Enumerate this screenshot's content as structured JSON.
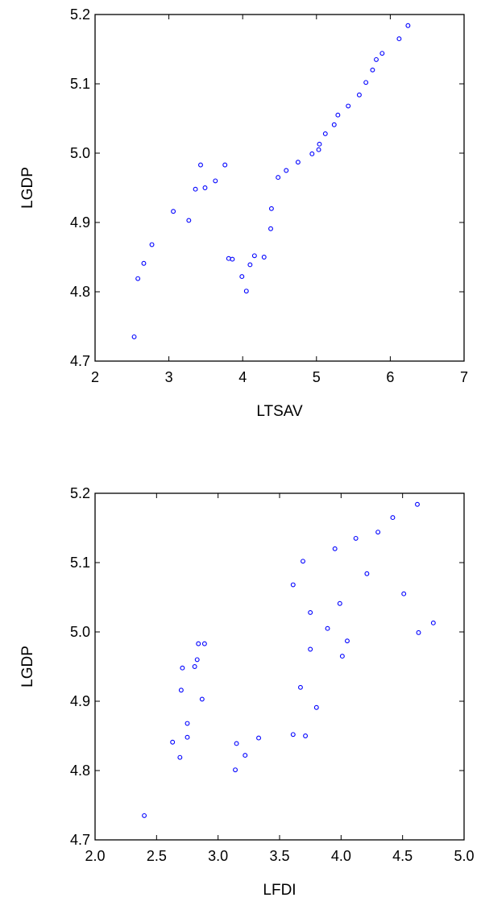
{
  "chart_data": [
    {
      "type": "scatter",
      "xlabel": "LTSAV",
      "ylabel": "LGDP",
      "xlim": [
        2,
        7
      ],
      "ylim": [
        4.7,
        5.2
      ],
      "xticks": [
        "2",
        "3",
        "4",
        "5",
        "6",
        "7"
      ],
      "yticks": [
        "4.7",
        "4.8",
        "4.9",
        "5.0",
        "5.1",
        "5.2"
      ],
      "marker_color": "#0000ff",
      "series": [
        {
          "points": [
            [
              2.53,
              4.735
            ],
            [
              2.58,
              4.819
            ],
            [
              2.66,
              4.841
            ],
            [
              2.77,
              4.868
            ],
            [
              3.06,
              4.916
            ],
            [
              3.27,
              4.903
            ],
            [
              3.36,
              4.948
            ],
            [
              3.43,
              4.983
            ],
            [
              3.49,
              4.95
            ],
            [
              3.63,
              4.96
            ],
            [
              3.76,
              4.983
            ],
            [
              3.81,
              4.848
            ],
            [
              3.86,
              4.847
            ],
            [
              3.99,
              4.822
            ],
            [
              4.05,
              4.801
            ],
            [
              4.1,
              4.839
            ],
            [
              4.16,
              4.852
            ],
            [
              4.29,
              4.85
            ],
            [
              4.38,
              4.891
            ],
            [
              4.39,
              4.92
            ],
            [
              4.48,
              4.965
            ],
            [
              4.59,
              4.975
            ],
            [
              4.75,
              4.987
            ],
            [
              4.94,
              4.999
            ],
            [
              5.03,
              5.005
            ],
            [
              5.04,
              5.013
            ],
            [
              5.12,
              5.028
            ],
            [
              5.24,
              5.041
            ],
            [
              5.29,
              5.055
            ],
            [
              5.43,
              5.068
            ],
            [
              5.58,
              5.084
            ],
            [
              5.67,
              5.102
            ],
            [
              5.76,
              5.12
            ],
            [
              5.81,
              5.135
            ],
            [
              5.89,
              5.144
            ],
            [
              6.12,
              5.165
            ],
            [
              6.24,
              5.184
            ]
          ]
        }
      ]
    },
    {
      "type": "scatter",
      "xlabel": "LFDI",
      "ylabel": "LGDP",
      "xlim": [
        2.0,
        5.0
      ],
      "ylim": [
        4.7,
        5.2
      ],
      "xticks": [
        "2.0",
        "2.5",
        "3.0",
        "3.5",
        "4.0",
        "4.5",
        "5.0"
      ],
      "yticks": [
        "4.7",
        "4.8",
        "4.9",
        "5.0",
        "5.1",
        "5.2"
      ],
      "marker_color": "#0000ff",
      "series": [
        {
          "points": [
            [
              2.4,
              4.735
            ],
            [
              2.63,
              4.841
            ],
            [
              2.69,
              4.819
            ],
            [
              2.7,
              4.916
            ],
            [
              2.71,
              4.948
            ],
            [
              2.75,
              4.848
            ],
            [
              2.75,
              4.868
            ],
            [
              2.81,
              4.95
            ],
            [
              2.83,
              4.96
            ],
            [
              2.84,
              4.983
            ],
            [
              2.87,
              4.903
            ],
            [
              2.89,
              4.983
            ],
            [
              3.14,
              4.801
            ],
            [
              3.15,
              4.839
            ],
            [
              3.22,
              4.822
            ],
            [
              3.33,
              4.847
            ],
            [
              3.61,
              4.852
            ],
            [
              3.61,
              5.068
            ],
            [
              3.67,
              4.92
            ],
            [
              3.69,
              5.102
            ],
            [
              3.71,
              4.85
            ],
            [
              3.75,
              4.975
            ],
            [
              3.75,
              5.028
            ],
            [
              3.8,
              4.891
            ],
            [
              3.89,
              5.005
            ],
            [
              3.95,
              5.12
            ],
            [
              3.99,
              5.041
            ],
            [
              4.01,
              4.965
            ],
            [
              4.05,
              4.987
            ],
            [
              4.12,
              5.135
            ],
            [
              4.21,
              5.084
            ],
            [
              4.3,
              5.144
            ],
            [
              4.42,
              5.165
            ],
            [
              4.51,
              5.055
            ],
            [
              4.62,
              5.184
            ],
            [
              4.63,
              4.999
            ],
            [
              4.75,
              5.013
            ]
          ]
        }
      ]
    }
  ]
}
